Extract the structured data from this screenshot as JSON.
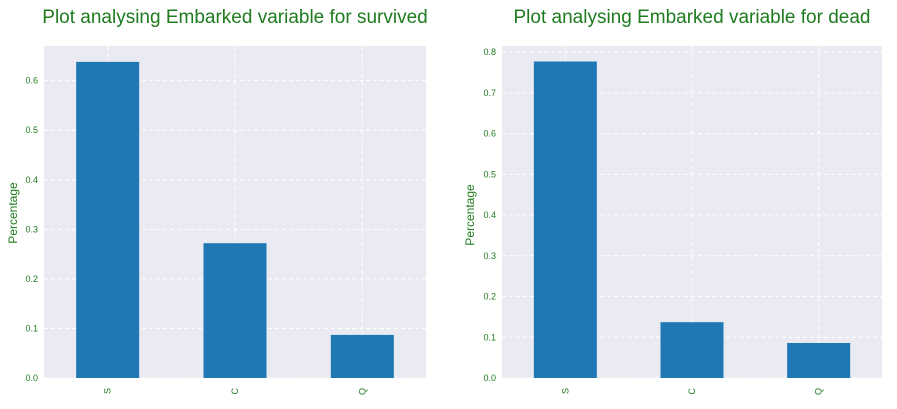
{
  "chart_data": [
    {
      "type": "bar",
      "title": "Plot analysing Embarked variable for survived",
      "xlabel": "",
      "ylabel": "Percentage",
      "categories": [
        "S",
        "C",
        "Q"
      ],
      "values": [
        0.638,
        0.272,
        0.087
      ],
      "ylim": [
        0,
        0.67
      ],
      "yticks": [
        "0.0",
        "0.1",
        "0.2",
        "0.3",
        "0.4",
        "0.5",
        "0.6"
      ],
      "grid": true,
      "bar_color": "#1f77b4",
      "background_color": "#eaeaf2",
      "text_color": "#1e7b1e"
    },
    {
      "type": "bar",
      "title": "Plot analysing Embarked variable for dead",
      "xlabel": "",
      "ylabel": "Percentage",
      "categories": [
        "S",
        "C",
        "Q"
      ],
      "values": [
        0.777,
        0.137,
        0.086
      ],
      "ylim": [
        0,
        0.815
      ],
      "yticks": [
        "0.0",
        "0.1",
        "0.2",
        "0.3",
        "0.4",
        "0.5",
        "0.6",
        "0.7",
        "0.8"
      ],
      "grid": true,
      "bar_color": "#1f77b4",
      "background_color": "#eaeaf2",
      "text_color": "#1e7b1e"
    }
  ]
}
